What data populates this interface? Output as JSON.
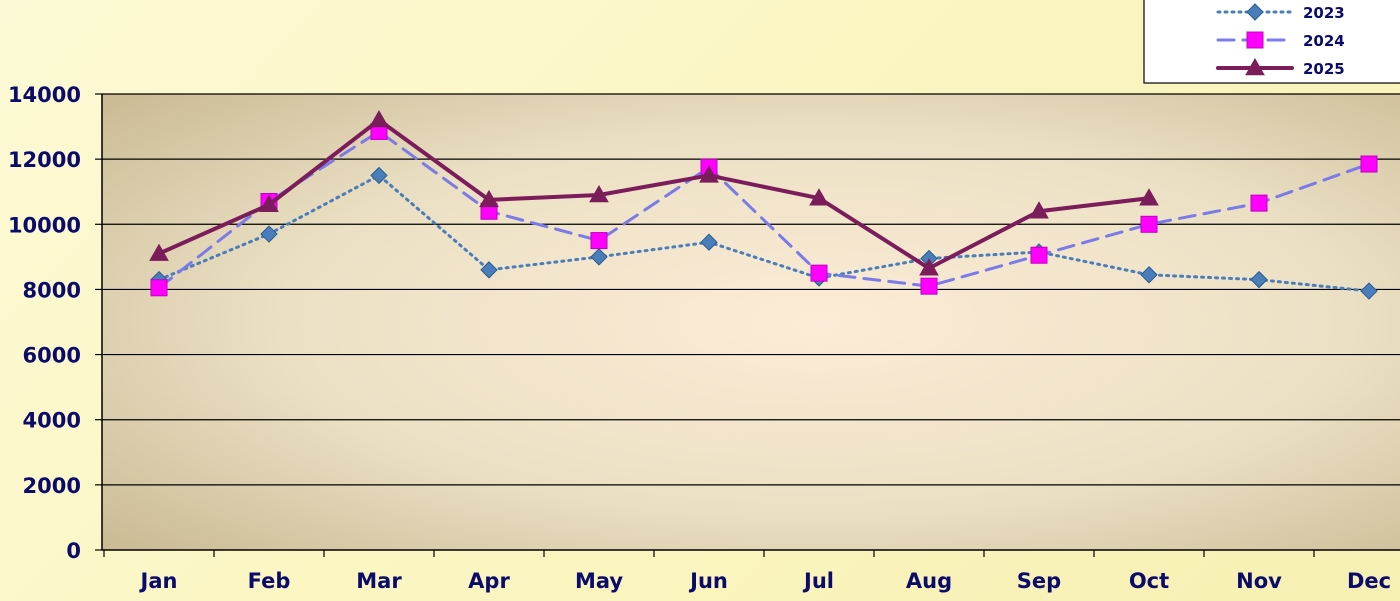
{
  "chart_data": {
    "type": "line",
    "categories": [
      "Jan",
      "Feb",
      "Mar",
      "Apr",
      "May",
      "Jun",
      "Jul",
      "Aug",
      "Sep",
      "Oct",
      "Nov",
      "Dec"
    ],
    "ylim": [
      0,
      14000
    ],
    "yticks": [
      0,
      2000,
      4000,
      6000,
      8000,
      10000,
      12000,
      14000
    ],
    "grid": true,
    "legend_position": "top-right",
    "series": [
      {
        "name": "2023",
        "color": "#4a7ebb",
        "marker": "diamond",
        "line_style": "dotted",
        "values": [
          8300,
          9700,
          11500,
          8600,
          9000,
          9450,
          8350,
          8950,
          9150,
          8450,
          8300,
          7950
        ]
      },
      {
        "name": "2024",
        "color": "#7b7be8",
        "marker_color": "#ff00ff",
        "marker": "square",
        "line_style": "dashed",
        "values": [
          8050,
          10700,
          12850,
          10400,
          9500,
          11750,
          8500,
          8100,
          9050,
          10000,
          10650,
          11850
        ]
      },
      {
        "name": "2025",
        "color": "#7b1d5a",
        "marker": "triangle",
        "line_style": "solid",
        "values": [
          9100,
          10600,
          13200,
          10750,
          10900,
          11500,
          10800,
          8650,
          10400,
          10800,
          null,
          null
        ]
      }
    ]
  }
}
